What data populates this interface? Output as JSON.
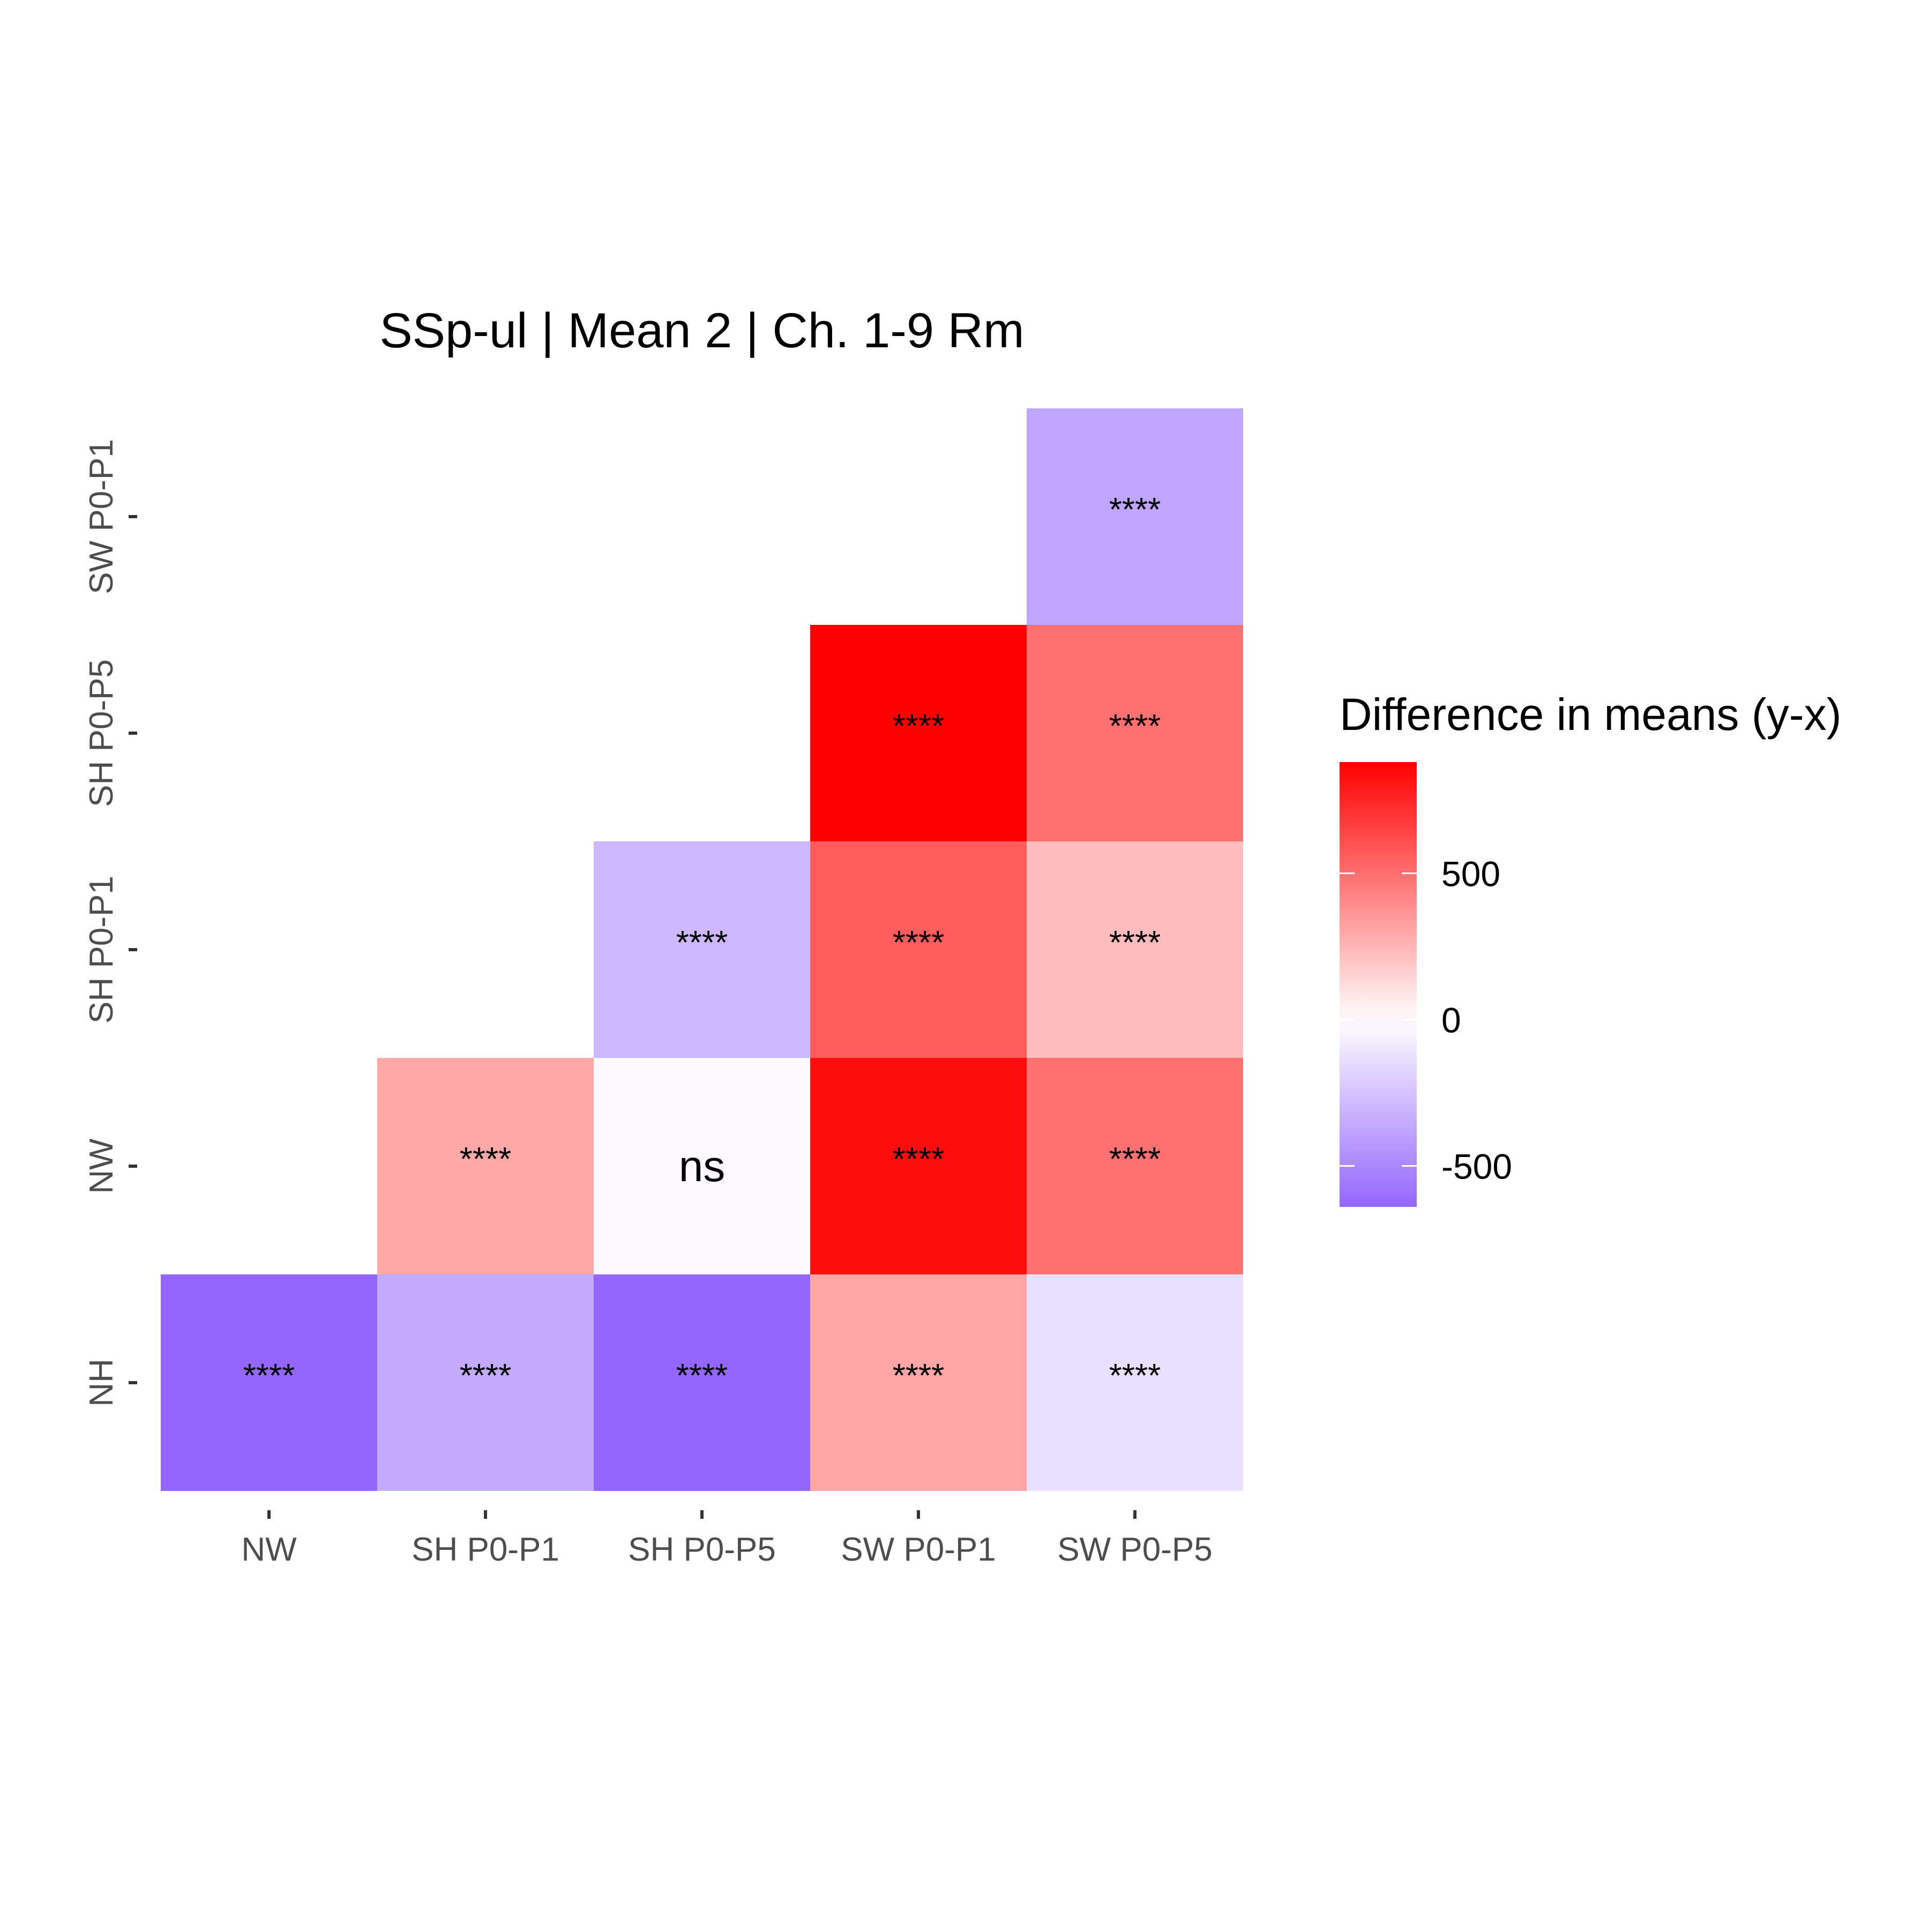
{
  "chart_data": {
    "type": "heatmap",
    "title": "SSp-ul | Mean 2 | Ch. 1-9 Rm",
    "x_categories": [
      "NW",
      "SH P0-P1",
      "SH P0-P5",
      "SW P0-P1",
      "SW P0-P5"
    ],
    "y_categories": [
      "NH",
      "NW",
      "SH P0-P1",
      "SH P0-P5",
      "SW P0-P1"
    ],
    "cells": [
      {
        "x": "NW",
        "y": "NH",
        "value": -640,
        "label": "****"
      },
      {
        "x": "SH P0-P1",
        "y": "NH",
        "value": -360,
        "label": "****"
      },
      {
        "x": "SH P0-P5",
        "y": "NH",
        "value": -640,
        "label": "****"
      },
      {
        "x": "SW P0-P1",
        "y": "NH",
        "value": 310,
        "label": "****"
      },
      {
        "x": "SW P0-P5",
        "y": "NH",
        "value": -130,
        "label": "****"
      },
      {
        "x": "SH P0-P1",
        "y": "NW",
        "value": 300,
        "label": "****"
      },
      {
        "x": "SH P0-P5",
        "y": "NW",
        "value": -20,
        "label": "ns"
      },
      {
        "x": "SW P0-P1",
        "y": "NW",
        "value": 840,
        "label": "****"
      },
      {
        "x": "SW P0-P5",
        "y": "NW",
        "value": 490,
        "label": "****"
      },
      {
        "x": "SH P0-P5",
        "y": "SH P0-P1",
        "value": -300,
        "label": "****"
      },
      {
        "x": "SW P0-P1",
        "y": "SH P0-P1",
        "value": 560,
        "label": "****"
      },
      {
        "x": "SW P0-P5",
        "y": "SH P0-P1",
        "value": 230,
        "label": "****"
      },
      {
        "x": "SW P0-P1",
        "y": "SH P0-P5",
        "value": 880,
        "label": "****"
      },
      {
        "x": "SW P0-P5",
        "y": "SH P0-P5",
        "value": 490,
        "label": "****"
      },
      {
        "x": "SW P0-P5",
        "y": "SW P0-P1",
        "value": -380,
        "label": "****"
      }
    ],
    "legend": {
      "title": "Difference in means (y-x)",
      "ticks": [
        -500,
        0,
        500
      ],
      "range": [
        -640,
        880
      ],
      "position": "right"
    },
    "color_scale": {
      "low": "#9467fc",
      "mid": "#ffffff",
      "high": "#ff0000"
    },
    "grid": false
  }
}
